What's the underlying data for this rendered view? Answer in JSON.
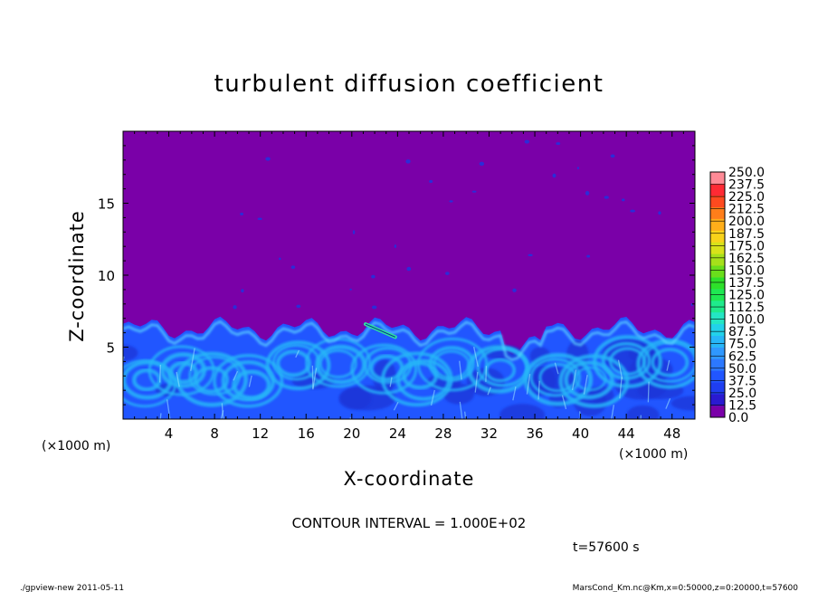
{
  "chart_data": {
    "type": "heatmap",
    "title": "turbulent diffusion coefficient",
    "xlabel": "X-coordinate",
    "ylabel": "Z-coordinate",
    "x_unit": "(×1000 m)",
    "y_unit": "(×1000 m)",
    "xlim": [
      0,
      50
    ],
    "ylim": [
      0,
      20
    ],
    "x_ticks": [
      4,
      8,
      12,
      16,
      20,
      24,
      28,
      32,
      36,
      40,
      44,
      48
    ],
    "y_ticks": [
      5,
      10,
      15
    ],
    "colorbar": {
      "levels": [
        "0.0",
        "12.5",
        "25.0",
        "37.5",
        "50.0",
        "62.5",
        "75.0",
        "87.5",
        "100.0",
        "112.5",
        "125.0",
        "137.5",
        "150.0",
        "162.5",
        "175.0",
        "187.5",
        "200.0",
        "212.5",
        "225.0",
        "237.5",
        "250.0"
      ],
      "colors": [
        "#7a00a8",
        "#2a1ad0",
        "#1f3ef0",
        "#2156ff",
        "#2c78ff",
        "#2f98ff",
        "#27b6f8",
        "#22d2ea",
        "#24e6c4",
        "#1fea8c",
        "#1fe852",
        "#2ee02a",
        "#6ade1c",
        "#a6e01a",
        "#d8e21a",
        "#f8d21a",
        "#ffae1a",
        "#ff7e1a",
        "#ff4a1f",
        "#ff2a34",
        "#ff8a96"
      ]
    },
    "background_value": 0.0,
    "turbulent_layer_top_km": 6.3,
    "contour_interval": "CONTOUR INTERVAL = 1.000E+02",
    "time_label": "t=57600 s",
    "colors": {
      "background_purple": "#7a00a8",
      "low_blue": "#2156ff",
      "mid_cyan": "#27b6f8"
    }
  },
  "footer": {
    "left": "./gpview-new  2011-05-11",
    "right": "MarsCond_Km.nc@Km,x=0:50000,z=0:20000,t=57600"
  }
}
